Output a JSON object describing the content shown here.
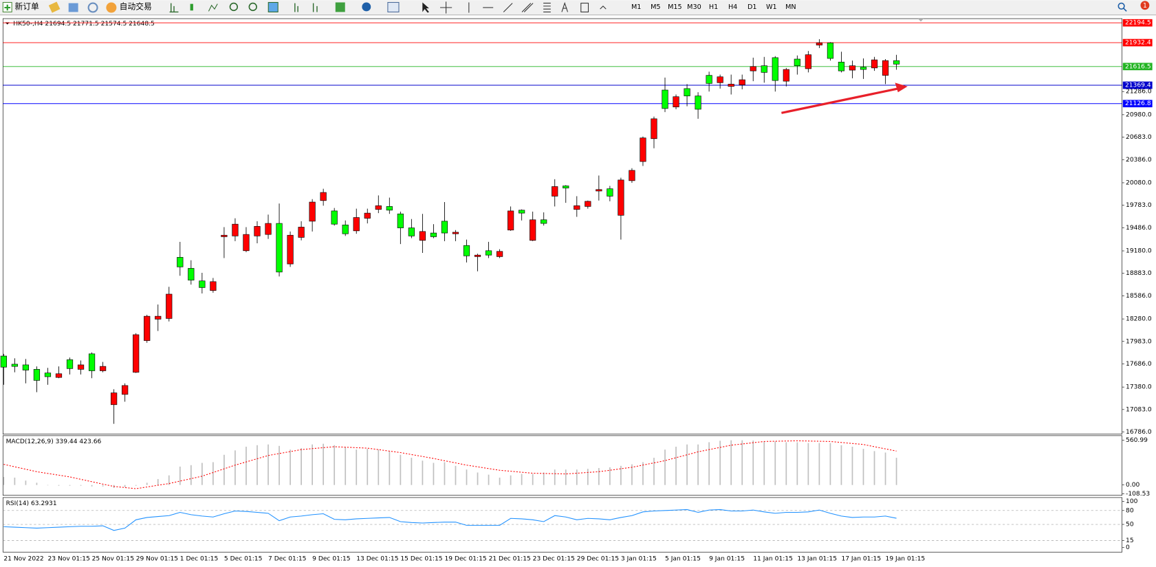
{
  "toolbar": {
    "new_order": "新订单",
    "auto_trading": "自动交易",
    "timeframes": [
      "M1",
      "M5",
      "M15",
      "M30",
      "H1",
      "H4",
      "D1",
      "W1",
      "MN"
    ],
    "notifications": "1"
  },
  "chart_data": [
    {
      "type": "candlestick",
      "title": "HK50-,H4  21694.5 21771.5 21574.5 21648.5",
      "categories": [
        "21 Nov 2022",
        null,
        null,
        null,
        "23 Nov 01:15",
        null,
        null,
        null,
        "25 Nov 01:15",
        null,
        null,
        null,
        "29 Nov 01:15",
        null,
        null,
        null,
        "1 Dec 01:15",
        null,
        null,
        null,
        "5 Dec 01:15",
        null,
        null,
        null,
        "7 Dec 01:15",
        null,
        null,
        null,
        "9 Dec 01:15",
        null,
        null,
        null,
        "13 Dec 01:15",
        null,
        null,
        null,
        "15 Dec 01:15",
        null,
        null,
        null,
        "19 Dec 01:15",
        null,
        null,
        null,
        "21 Dec 01:15",
        null,
        null,
        null,
        "23 Dec 01:15",
        null,
        null,
        null,
        "29 Dec 01:15",
        null,
        null,
        null,
        "3 Jan 01:15",
        null,
        null,
        null,
        "5 Jan 01:15",
        null,
        null,
        null,
        "9 Jan 01:15",
        null,
        null,
        null,
        "11 Jan 01:15",
        null,
        null,
        null,
        "13 Jan 01:15",
        null,
        null,
        null,
        "17 Jan 01:15",
        null,
        null,
        null,
        "19 Jan 01:15",
        null
      ],
      "open": [
        17790,
        17682,
        17673,
        17614,
        17566,
        17507,
        17741,
        17614,
        17819,
        17595,
        17147,
        17283,
        17575,
        17994,
        18277,
        18286,
        19095,
        18949,
        18783,
        18656,
        19367,
        19377,
        19182,
        19377,
        19397,
        19543,
        19007,
        19358,
        19572,
        19845,
        19708,
        19523,
        19445,
        19611,
        19728,
        19767,
        19669,
        19484,
        19319,
        19416,
        19572,
        19406,
        19251,
        19104,
        19182,
        19104,
        19455,
        19718,
        19319,
        19591,
        19903,
        20039,
        19728,
        19767,
        19971,
        20001,
        19650,
        20108,
        20361,
        20663,
        21306,
        21082,
        21325,
        21228,
        21500,
        21403,
        21354,
        21374,
        21559,
        21627,
        21734,
        21423,
        21715,
        21588,
        21900,
        21929,
        21676,
        21569,
        21608,
        21598,
        21500,
        21694.5
      ],
      "high": [
        17819,
        17760,
        17751,
        17653,
        17634,
        17653,
        17770,
        17731,
        17838,
        17712,
        17351,
        17429,
        18092,
        18335,
        18471,
        18705,
        19299,
        19056,
        18890,
        18822,
        19494,
        19611,
        19494,
        19572,
        19660,
        19806,
        19436,
        19572,
        19864,
        20001,
        19747,
        19582,
        19738,
        19738,
        19913,
        19884,
        19699,
        19601,
        19669,
        19533,
        19825,
        19455,
        19329,
        19143,
        19299,
        19202,
        19767,
        19728,
        19699,
        19689,
        20127,
        20049,
        19903,
        19845,
        20176,
        20039,
        20147,
        20273,
        20692,
        20955,
        21471,
        21247,
        21384,
        21277,
        21549,
        21510,
        21510,
        21510,
        21734,
        21744,
        21754,
        21598,
        21763,
        21822,
        21978,
        21939,
        21812,
        21695,
        21724,
        21744,
        21715,
        21771.5
      ],
      "low": [
        17410,
        17575,
        17429,
        17312,
        17410,
        17497,
        17546,
        17546,
        17497,
        17575,
        16894,
        17186,
        17566,
        17965,
        18121,
        18247,
        18851,
        18734,
        18617,
        18627,
        19085,
        19309,
        19163,
        19280,
        19338,
        18842,
        18968,
        19319,
        19436,
        19777,
        19514,
        19377,
        19406,
        19543,
        19679,
        19669,
        19270,
        19348,
        19153,
        19348,
        19309,
        19309,
        19027,
        18910,
        19085,
        19085,
        19445,
        19582,
        19309,
        19514,
        19767,
        19815,
        19630,
        19738,
        19845,
        19835,
        19329,
        20079,
        20302,
        20536,
        21014,
        21052,
        21091,
        20926,
        21286,
        21325,
        21247,
        21315,
        21423,
        21403,
        21286,
        21354,
        21510,
        21539,
        21861,
        21695,
        21539,
        21462,
        21452,
        21559,
        21384,
        21574.5
      ],
      "close": [
        17643,
        17653,
        17604,
        17468,
        17517,
        17556,
        17624,
        17673,
        17595,
        17653,
        17303,
        17400,
        18072,
        18316,
        18316,
        18608,
        18968,
        18793,
        18695,
        18773,
        19387,
        19533,
        19397,
        19504,
        19543,
        18900,
        19387,
        19494,
        19825,
        19952,
        19533,
        19406,
        19621,
        19679,
        19777,
        19718,
        19484,
        19377,
        19436,
        19367,
        19416,
        19426,
        19114,
        19124,
        19124,
        19173,
        19708,
        19679,
        19591,
        19543,
        20030,
        20010,
        19777,
        19835,
        19991,
        19903,
        20117,
        20244,
        20673,
        20926,
        21062,
        21218,
        21228,
        21052,
        21393,
        21481,
        21384,
        21442,
        21617,
        21539,
        21432,
        21578,
        21627,
        21773,
        21929,
        21724,
        21559,
        21627,
        21578,
        21705,
        21695,
        21648.5
      ],
      "up_color": "#ff0000",
      "down_color": "#00ff00",
      "ylim": [
        16757,
        22250
      ],
      "yticks": [
        {
          "value": 16786,
          "label": "16786.0"
        },
        {
          "value": 17083,
          "label": "17083.0"
        },
        {
          "value": 17380,
          "label": "17380.0"
        },
        {
          "value": 17686,
          "label": "17686.0"
        },
        {
          "value": 17983,
          "label": "17983.0"
        },
        {
          "value": 18280,
          "label": "18280.0"
        },
        {
          "value": 18586,
          "label": "18586.0"
        },
        {
          "value": 18883,
          "label": "18883.0"
        },
        {
          "value": 19180,
          "label": "19180.0"
        },
        {
          "value": 19486,
          "label": "19486.0"
        },
        {
          "value": 19783,
          "label": "19783.0"
        },
        {
          "value": 20080,
          "label": "20080.0"
        },
        {
          "value": 20386,
          "label": "20386.0"
        },
        {
          "value": 20683,
          "label": "20683.0"
        },
        {
          "value": 20980,
          "label": "20980.0"
        },
        {
          "value": 21286,
          "label": "21286.0"
        }
      ],
      "hlines": [
        {
          "value": 22194.5,
          "color": "#ff0000"
        },
        {
          "value": 21932.4,
          "color": "#ff0000"
        },
        {
          "value": 21616.5,
          "color": "#22b422"
        },
        {
          "value": 21369.4,
          "color": "#0000cc"
        },
        {
          "value": 21126.8,
          "color": "#0000ff"
        }
      ]
    },
    {
      "type": "macd",
      "title": "MACD(12,26,9) 339.44 423.66",
      "histogram": [
        100,
        92,
        55,
        28,
        0,
        -9,
        -9,
        -9,
        -18,
        -18,
        -37,
        -28,
        -9,
        28,
        74,
        120,
        230,
        248,
        276,
        285,
        377,
        432,
        478,
        497,
        506,
        488,
        442,
        460,
        506,
        515,
        497,
        469,
        442,
        451,
        442,
        423,
        377,
        340,
        304,
        276,
        285,
        239,
        193,
        156,
        129,
        92,
        120,
        138,
        138,
        156,
        193,
        193,
        193,
        202,
        212,
        221,
        239,
        258,
        285,
        340,
        442,
        478,
        506,
        506,
        534,
        552,
        558,
        558,
        555,
        543,
        543,
        534,
        534,
        524,
        524,
        524,
        497,
        478,
        451,
        423,
        405,
        339.44
      ],
      "histogram_color": "#c0c0c0",
      "signal": [
        258,
        227,
        197,
        166,
        144,
        123,
        101,
        71,
        41,
        11,
        -18,
        -32,
        -46,
        -25,
        -3,
        18,
        49,
        79,
        110,
        156,
        202,
        248,
        288,
        328,
        368,
        393,
        417,
        442,
        454,
        466,
        478,
        472,
        466,
        460,
        442,
        423,
        405,
        380,
        356,
        331,
        303,
        276,
        248,
        227,
        205,
        184,
        172,
        159,
        147,
        144,
        141,
        138,
        147,
        157,
        166,
        184,
        203,
        221,
        249,
        276,
        304,
        341,
        377,
        414,
        442,
        469,
        497,
        512,
        528,
        543,
        546,
        549,
        552,
        549,
        546,
        543,
        531,
        518,
        506,
        478,
        451,
        423.66
      ],
      "signal_color": "#ff0000",
      "ylim": [
        -129,
        616
      ],
      "yticks": [
        {
          "value": 0,
          "label": "0.00"
        },
        -108.53,
        560.99
      ]
    },
    {
      "type": "line",
      "title": "RSI(14) 63.2931",
      "values": [
        45,
        44,
        43,
        42,
        43,
        44,
        45,
        46,
        46,
        47,
        37,
        42,
        60,
        65,
        67,
        69,
        76,
        71,
        68,
        66,
        73,
        79,
        78,
        76,
        74,
        58,
        66,
        68,
        71,
        73,
        61,
        60,
        62,
        63,
        64,
        65,
        56,
        54,
        53,
        54,
        55,
        55,
        48,
        48,
        48,
        48,
        63,
        62,
        60,
        56,
        69,
        66,
        60,
        63,
        62,
        60,
        65,
        69,
        77,
        79,
        80,
        81,
        82,
        76,
        81,
        82,
        79,
        79,
        81,
        77,
        74,
        76,
        76,
        77,
        81,
        74,
        68,
        65,
        66,
        66,
        68,
        63.2931
      ],
      "color": "#1e90ff",
      "ylim": [
        -9.7,
        108
      ],
      "yticks": [
        100,
        80,
        50,
        15,
        0
      ]
    }
  ]
}
